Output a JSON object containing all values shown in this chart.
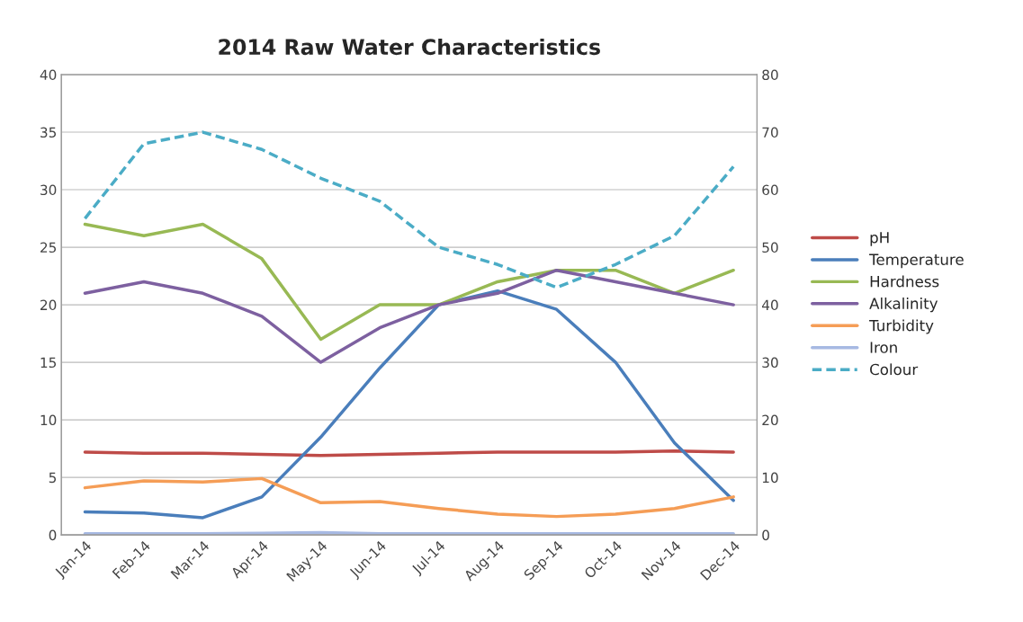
{
  "chart_data": {
    "type": "line",
    "title": "2014 Raw Water Characteristics",
    "categories": [
      "Jan-14",
      "Feb-14",
      "Mar-14",
      "Apr-14",
      "May-14",
      "Jun-14",
      "Jul-14",
      "Aug-14",
      "Sep-14",
      "Oct-14",
      "Nov-14",
      "Dec-14"
    ],
    "series": [
      {
        "name": "pH",
        "color": "#be4b48",
        "line_style": "solid",
        "values": [
          7.2,
          7.1,
          7.1,
          7.0,
          6.9,
          7.0,
          7.1,
          7.2,
          7.2,
          7.2,
          7.3,
          7.2
        ]
      },
      {
        "name": "Temperature",
        "color": "#4a7ebb",
        "line_style": "solid",
        "values": [
          2,
          1.9,
          1.5,
          3.3,
          8.5,
          14.5,
          20,
          21.2,
          19.6,
          15,
          8,
          3
        ]
      },
      {
        "name": "Hardness",
        "color": "#98b954",
        "line_style": "solid",
        "values": [
          27,
          26,
          27,
          24,
          17,
          20,
          20,
          22,
          23,
          23,
          21,
          23
        ]
      },
      {
        "name": "Alkalinity",
        "color": "#7d60a0",
        "line_style": "solid",
        "values": [
          21,
          22,
          21,
          19,
          15,
          18,
          20,
          21,
          23,
          22,
          21,
          20
        ]
      },
      {
        "name": "Turbidity",
        "color": "#f59d56",
        "line_style": "solid",
        "values": [
          4.1,
          4.7,
          4.6,
          4.9,
          2.8,
          2.9,
          2.3,
          1.8,
          1.6,
          1.8,
          2.3,
          3.3
        ]
      },
      {
        "name": "Iron",
        "color": "#a7b9e3",
        "line_style": "solid",
        "values": [
          0.1,
          0.1,
          0.1,
          0.15,
          0.2,
          0.1,
          0.1,
          0.1,
          0.1,
          0.1,
          0.1,
          0.1
        ]
      },
      {
        "name": "Colour",
        "color": "#4bacc6",
        "line_style": "dashed",
        "axis": "y2",
        "values": [
          55,
          68,
          70,
          67,
          62,
          58,
          50,
          47,
          43,
          47,
          52,
          64
        ]
      }
    ],
    "ylim": [
      0,
      40
    ],
    "yticks": [
      0,
      5,
      10,
      15,
      20,
      25,
      30,
      35,
      40
    ],
    "y2lim": [
      0,
      80
    ],
    "y2ticks": [
      0,
      10,
      20,
      30,
      40,
      50,
      60,
      70,
      80
    ],
    "grid": "y",
    "legend": "right",
    "marker": "none"
  }
}
